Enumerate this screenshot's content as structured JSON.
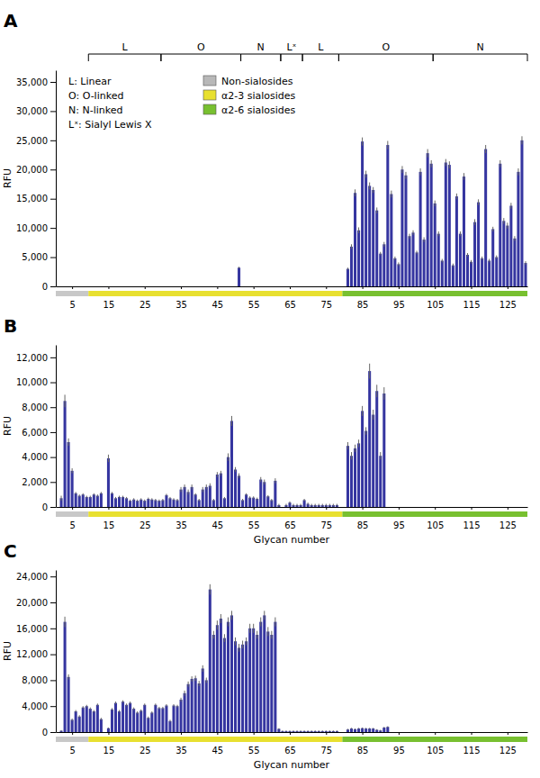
{
  "chart_data": [
    {
      "type": "bar",
      "title": "A",
      "ylabel": "RFU",
      "color": "#3535a0",
      "grid": false,
      "legend": "upper left",
      "annotations": [
        "L: Linear",
        "O: O-linked",
        "N: N-linked",
        "Lˣ: Sialyl Lewis X"
      ],
      "legend_items": [
        {
          "label": "Non-sialosides",
          "color": "#b8b8b8"
        },
        {
          "label": "α2-3 sialosides",
          "color": "#e8e030"
        },
        {
          "label": "α2-6 sialosides",
          "color": "#78c030"
        }
      ],
      "brackets": [
        {
          "label": "L",
          "start": 10,
          "end": 29
        },
        {
          "label": "O",
          "start": 30,
          "end": 51
        },
        {
          "label": "N",
          "start": 52,
          "end": 62
        },
        {
          "label": "Lˣ",
          "start": 63,
          "end": 68
        },
        {
          "label": "L",
          "start": 69,
          "end": 78
        },
        {
          "label": "O",
          "start": 79,
          "end": 104
        },
        {
          "label": "N",
          "start": 105,
          "end": 130
        }
      ],
      "bands": [
        {
          "start": 1,
          "end": 9,
          "color": "#c8c8c8"
        },
        {
          "start": 10,
          "end": 79,
          "color": "#e8e030"
        },
        {
          "start": 80,
          "end": 130,
          "color": "#78c030"
        }
      ],
      "xlim": [
        0.5,
        130.5
      ],
      "xticks": [
        5,
        15,
        25,
        35,
        45,
        55,
        65,
        75,
        85,
        95,
        105,
        115,
        125
      ],
      "ylim": [
        0,
        37000
      ],
      "yticks": [
        0,
        {
          "value": 5000,
          "label": "5,000"
        },
        {
          "value": 10000,
          "label": "10,000"
        },
        {
          "value": 15000,
          "label": "15,000"
        },
        {
          "value": 20000,
          "label": "20,000"
        },
        {
          "value": 25000,
          "label": "25,000"
        },
        {
          "value": 30000,
          "label": "30,000"
        },
        {
          "value": 35000,
          "label": "35,000"
        }
      ],
      "x": [
        1,
        2,
        3,
        4,
        5,
        6,
        7,
        8,
        9,
        10,
        11,
        12,
        13,
        14,
        15,
        16,
        17,
        18,
        19,
        20,
        21,
        22,
        23,
        24,
        25,
        26,
        27,
        28,
        29,
        30,
        31,
        32,
        33,
        34,
        35,
        36,
        37,
        38,
        39,
        40,
        41,
        42,
        43,
        44,
        45,
        46,
        47,
        48,
        49,
        50,
        51,
        52,
        53,
        54,
        55,
        56,
        57,
        58,
        59,
        60,
        61,
        62,
        63,
        64,
        65,
        66,
        67,
        68,
        69,
        70,
        71,
        72,
        73,
        74,
        75,
        76,
        77,
        78,
        79,
        80,
        81,
        82,
        83,
        84,
        85,
        86,
        87,
        88,
        89,
        90,
        91,
        92,
        93,
        94,
        95,
        96,
        97,
        98,
        99,
        100,
        101,
        102,
        103,
        104,
        105,
        106,
        107,
        108,
        109,
        110,
        111,
        112,
        113,
        114,
        115,
        116,
        117,
        118,
        119,
        120,
        121,
        122,
        123,
        124,
        125,
        126,
        127,
        128,
        129,
        130
      ],
      "values": [
        0,
        0,
        0,
        0,
        0,
        0,
        0,
        0,
        0,
        0,
        0,
        0,
        0,
        0,
        0,
        0,
        0,
        0,
        0,
        0,
        0,
        0,
        0,
        0,
        0,
        0,
        0,
        0,
        0,
        0,
        0,
        0,
        0,
        0,
        0,
        0,
        0,
        0,
        0,
        0,
        0,
        0,
        0,
        0,
        0,
        0,
        0,
        0,
        0,
        0,
        3200,
        0,
        0,
        0,
        0,
        0,
        0,
        0,
        0,
        0,
        0,
        0,
        0,
        0,
        0,
        0,
        0,
        0,
        0,
        0,
        0,
        0,
        0,
        0,
        0,
        0,
        0,
        0,
        0,
        0,
        3000,
        6800,
        16000,
        9600,
        24800,
        19200,
        17200,
        16500,
        13000,
        5600,
        7200,
        24200,
        15800,
        4800,
        3800,
        20000,
        19000,
        8600,
        9200,
        5800,
        19600,
        8000,
        22800,
        21000,
        14200,
        9000,
        4400,
        21200,
        20800,
        3600,
        15400,
        9000,
        18800,
        5400,
        4200,
        11000,
        14400,
        4800,
        23500,
        4400,
        9800,
        5000,
        21000,
        11200,
        10400,
        13800,
        8200,
        19600,
        25000,
        4000
      ],
      "errors": [
        0,
        0,
        0,
        0,
        0,
        0,
        0,
        0,
        0,
        0,
        0,
        0,
        0,
        0,
        0,
        0,
        0,
        0,
        0,
        0,
        0,
        0,
        0,
        0,
        0,
        0,
        0,
        0,
        0,
        0,
        0,
        0,
        0,
        0,
        0,
        0,
        0,
        0,
        0,
        0,
        0,
        0,
        0,
        0,
        0,
        0,
        0,
        0,
        0,
        0,
        150,
        0,
        0,
        0,
        0,
        0,
        0,
        0,
        0,
        0,
        0,
        0,
        0,
        0,
        0,
        0,
        0,
        0,
        0,
        0,
        0,
        0,
        0,
        0,
        0,
        0,
        0,
        0,
        0,
        0,
        200,
        400,
        600,
        500,
        700,
        600,
        600,
        500,
        500,
        300,
        400,
        700,
        600,
        300,
        300,
        600,
        600,
        400,
        400,
        300,
        600,
        400,
        700,
        600,
        500,
        400,
        300,
        600,
        600,
        300,
        500,
        400,
        600,
        300,
        300,
        500,
        500,
        300,
        700,
        300,
        400,
        300,
        600,
        500,
        500,
        500,
        400,
        600,
        700,
        300
      ]
    },
    {
      "type": "bar",
      "title": "B",
      "xlabel": "Glycan number",
      "ylabel": "RFU",
      "color": "#3535a0",
      "grid": false,
      "bands": [
        {
          "start": 1,
          "end": 9,
          "color": "#c8c8c8"
        },
        {
          "start": 10,
          "end": 79,
          "color": "#e8e030"
        },
        {
          "start": 80,
          "end": 130,
          "color": "#78c030"
        }
      ],
      "xlim": [
        0.5,
        130.5
      ],
      "xticks": [
        5,
        15,
        25,
        35,
        45,
        55,
        65,
        75,
        85,
        95,
        105,
        115,
        125
      ],
      "ylim": [
        0,
        13000
      ],
      "yticks": [
        0,
        {
          "value": 2000,
          "label": "2,000"
        },
        {
          "value": 4000,
          "label": "4,000"
        },
        {
          "value": 6000,
          "label": "6,000"
        },
        {
          "value": 8000,
          "label": "8,000"
        },
        {
          "value": 10000,
          "label": "10,000"
        },
        {
          "value": 12000,
          "label": "12,000"
        }
      ],
      "x": [
        1,
        2,
        3,
        4,
        5,
        6,
        7,
        8,
        9,
        10,
        11,
        12,
        13,
        14,
        15,
        16,
        17,
        18,
        19,
        20,
        21,
        22,
        23,
        24,
        25,
        26,
        27,
        28,
        29,
        30,
        31,
        32,
        33,
        34,
        35,
        36,
        37,
        38,
        39,
        40,
        41,
        42,
        43,
        44,
        45,
        46,
        47,
        48,
        49,
        50,
        51,
        52,
        53,
        54,
        55,
        56,
        57,
        58,
        59,
        60,
        61,
        62,
        63,
        64,
        65,
        66,
        67,
        68,
        69,
        70,
        71,
        72,
        73,
        74,
        75,
        76,
        77,
        78,
        79,
        80,
        81,
        82,
        83,
        84,
        85,
        86,
        87,
        88,
        89,
        90,
        91,
        92,
        93,
        94,
        95,
        96,
        97,
        98,
        99,
        100,
        101,
        102,
        103,
        104,
        105,
        106,
        107,
        108,
        109,
        110,
        111,
        112,
        113,
        114,
        115,
        116,
        117,
        118,
        119,
        120,
        121,
        122,
        123,
        124,
        125,
        126,
        127,
        128,
        129,
        130
      ],
      "values": [
        0,
        700,
        8500,
        5200,
        2900,
        1100,
        900,
        1000,
        800,
        800,
        1000,
        900,
        1100,
        0,
        3900,
        1100,
        700,
        800,
        800,
        700,
        500,
        600,
        500,
        600,
        500,
        650,
        600,
        550,
        500,
        550,
        950,
        700,
        600,
        550,
        1400,
        1600,
        1200,
        1600,
        1000,
        550,
        1400,
        1600,
        1700,
        550,
        2600,
        2700,
        700,
        4000,
        6900,
        3000,
        2500,
        550,
        1000,
        750,
        750,
        650,
        2200,
        2000,
        850,
        550,
        2100,
        150,
        0,
        150,
        350,
        150,
        150,
        150,
        550,
        250,
        150,
        150,
        150,
        150,
        150,
        150,
        150,
        150,
        0,
        0,
        4900,
        4100,
        4700,
        5100,
        7700,
        6100,
        10900,
        7400,
        9300,
        4100,
        9100,
        0,
        0,
        0,
        0,
        0,
        0,
        0,
        0,
        0,
        0,
        0,
        0,
        0,
        0,
        0,
        0,
        0,
        0,
        0,
        0,
        0,
        0,
        0,
        0,
        0,
        0,
        0,
        0,
        0,
        0,
        0,
        0,
        0,
        0,
        0,
        0,
        0,
        0,
        0
      ],
      "errors": [
        0,
        200,
        500,
        300,
        200,
        100,
        100,
        100,
        100,
        100,
        100,
        100,
        100,
        0,
        300,
        100,
        100,
        100,
        100,
        100,
        100,
        100,
        100,
        100,
        100,
        100,
        100,
        100,
        100,
        100,
        100,
        100,
        100,
        100,
        200,
        200,
        200,
        200,
        100,
        100,
        200,
        200,
        200,
        100,
        200,
        200,
        100,
        300,
        400,
        200,
        200,
        100,
        100,
        100,
        100,
        100,
        200,
        200,
        100,
        100,
        200,
        100,
        0,
        100,
        100,
        100,
        100,
        100,
        100,
        100,
        100,
        100,
        100,
        100,
        100,
        100,
        100,
        100,
        0,
        0,
        300,
        300,
        300,
        300,
        400,
        300,
        600,
        400,
        500,
        300,
        500,
        0,
        0,
        0,
        0,
        0,
        0,
        0,
        0,
        0,
        0,
        0,
        0,
        0,
        0,
        0,
        0,
        0,
        0,
        0,
        0,
        0,
        0,
        0,
        0,
        0,
        0,
        0,
        0,
        0,
        0,
        0,
        0,
        0,
        0,
        0,
        0,
        0,
        0,
        0
      ]
    },
    {
      "type": "bar",
      "title": "C",
      "xlabel": "Glycan number",
      "ylabel": "RFU",
      "color": "#3535a0",
      "grid": false,
      "bands": [
        {
          "start": 1,
          "end": 9,
          "color": "#c8c8c8"
        },
        {
          "start": 10,
          "end": 79,
          "color": "#e8e030"
        },
        {
          "start": 80,
          "end": 130,
          "color": "#78c030"
        }
      ],
      "xlim": [
        0.5,
        130.5
      ],
      "xticks": [
        5,
        15,
        25,
        35,
        45,
        55,
        65,
        75,
        85,
        95,
        105,
        115,
        125
      ],
      "ylim": [
        0,
        25000
      ],
      "yticks": [
        0,
        {
          "value": 4000,
          "label": "4,000"
        },
        {
          "value": 8000,
          "label": "8,000"
        },
        {
          "value": 12000,
          "label": "12,000"
        },
        {
          "value": 16000,
          "label": "16,000"
        },
        {
          "value": 20000,
          "label": "20,000"
        },
        {
          "value": 24000,
          "label": "24,000"
        }
      ],
      "x": [
        1,
        2,
        3,
        4,
        5,
        6,
        7,
        8,
        9,
        10,
        11,
        12,
        13,
        14,
        15,
        16,
        17,
        18,
        19,
        20,
        21,
        22,
        23,
        24,
        25,
        26,
        27,
        28,
        29,
        30,
        31,
        32,
        33,
        34,
        35,
        36,
        37,
        38,
        39,
        40,
        41,
        42,
        43,
        44,
        45,
        46,
        47,
        48,
        49,
        50,
        51,
        52,
        53,
        54,
        55,
        56,
        57,
        58,
        59,
        60,
        61,
        62,
        63,
        64,
        65,
        66,
        67,
        68,
        69,
        70,
        71,
        72,
        73,
        74,
        75,
        76,
        77,
        78,
        79,
        80,
        81,
        82,
        83,
        84,
        85,
        86,
        87,
        88,
        89,
        90,
        91,
        92,
        93,
        94,
        95,
        96,
        97,
        98,
        99,
        100,
        101,
        102,
        103,
        104,
        105,
        106,
        107,
        108,
        109,
        110,
        111,
        112,
        113,
        114,
        115,
        116,
        117,
        118,
        119,
        120,
        121,
        122,
        123,
        124,
        125,
        126,
        127,
        128,
        129,
        130
      ],
      "values": [
        0,
        200,
        17000,
        8500,
        1900,
        3200,
        2400,
        3800,
        4000,
        3600,
        3200,
        4200,
        2000,
        0,
        600,
        3500,
        4500,
        3200,
        4700,
        4200,
        4500,
        3600,
        3000,
        3300,
        4200,
        2200,
        3000,
        4200,
        3700,
        3700,
        4100,
        1700,
        4100,
        4000,
        5000,
        6000,
        7400,
        8200,
        8300,
        7500,
        9800,
        8000,
        22000,
        15000,
        16500,
        17500,
        14500,
        17000,
        18000,
        14000,
        13000,
        13500,
        14000,
        16000,
        16000,
        15000,
        17000,
        18000,
        15500,
        15000,
        17000,
        500,
        150,
        150,
        150,
        150,
        150,
        150,
        150,
        150,
        150,
        150,
        150,
        150,
        150,
        150,
        150,
        150,
        0,
        0,
        400,
        550,
        450,
        550,
        600,
        550,
        550,
        550,
        350,
        250,
        700,
        800,
        0,
        0,
        0,
        0,
        0,
        0,
        0,
        0,
        0,
        0,
        0,
        0,
        0,
        0,
        0,
        0,
        0,
        0,
        0,
        0,
        0,
        0,
        0,
        0,
        0,
        0,
        0,
        0,
        0,
        0,
        0,
        0,
        0,
        0,
        0,
        0,
        0,
        0
      ],
      "errors": [
        0,
        100,
        800,
        400,
        200,
        200,
        200,
        200,
        200,
        200,
        200,
        200,
        200,
        0,
        100,
        200,
        200,
        200,
        200,
        200,
        200,
        200,
        200,
        200,
        200,
        200,
        200,
        200,
        200,
        200,
        200,
        200,
        200,
        200,
        300,
        400,
        400,
        400,
        400,
        400,
        500,
        400,
        800,
        600,
        700,
        700,
        600,
        700,
        700,
        600,
        600,
        600,
        600,
        700,
        700,
        600,
        700,
        700,
        700,
        600,
        700,
        100,
        100,
        100,
        100,
        100,
        100,
        100,
        100,
        100,
        100,
        100,
        100,
        100,
        100,
        100,
        100,
        100,
        0,
        0,
        100,
        100,
        100,
        100,
        100,
        100,
        100,
        100,
        100,
        100,
        100,
        100,
        0,
        0,
        0,
        0,
        0,
        0,
        0,
        0,
        0,
        0,
        0,
        0,
        0,
        0,
        0,
        0,
        0,
        0,
        0,
        0,
        0,
        0,
        0,
        0,
        0,
        0,
        0,
        0,
        0,
        0,
        0,
        0,
        0,
        0,
        0,
        0,
        0,
        0
      ]
    }
  ]
}
